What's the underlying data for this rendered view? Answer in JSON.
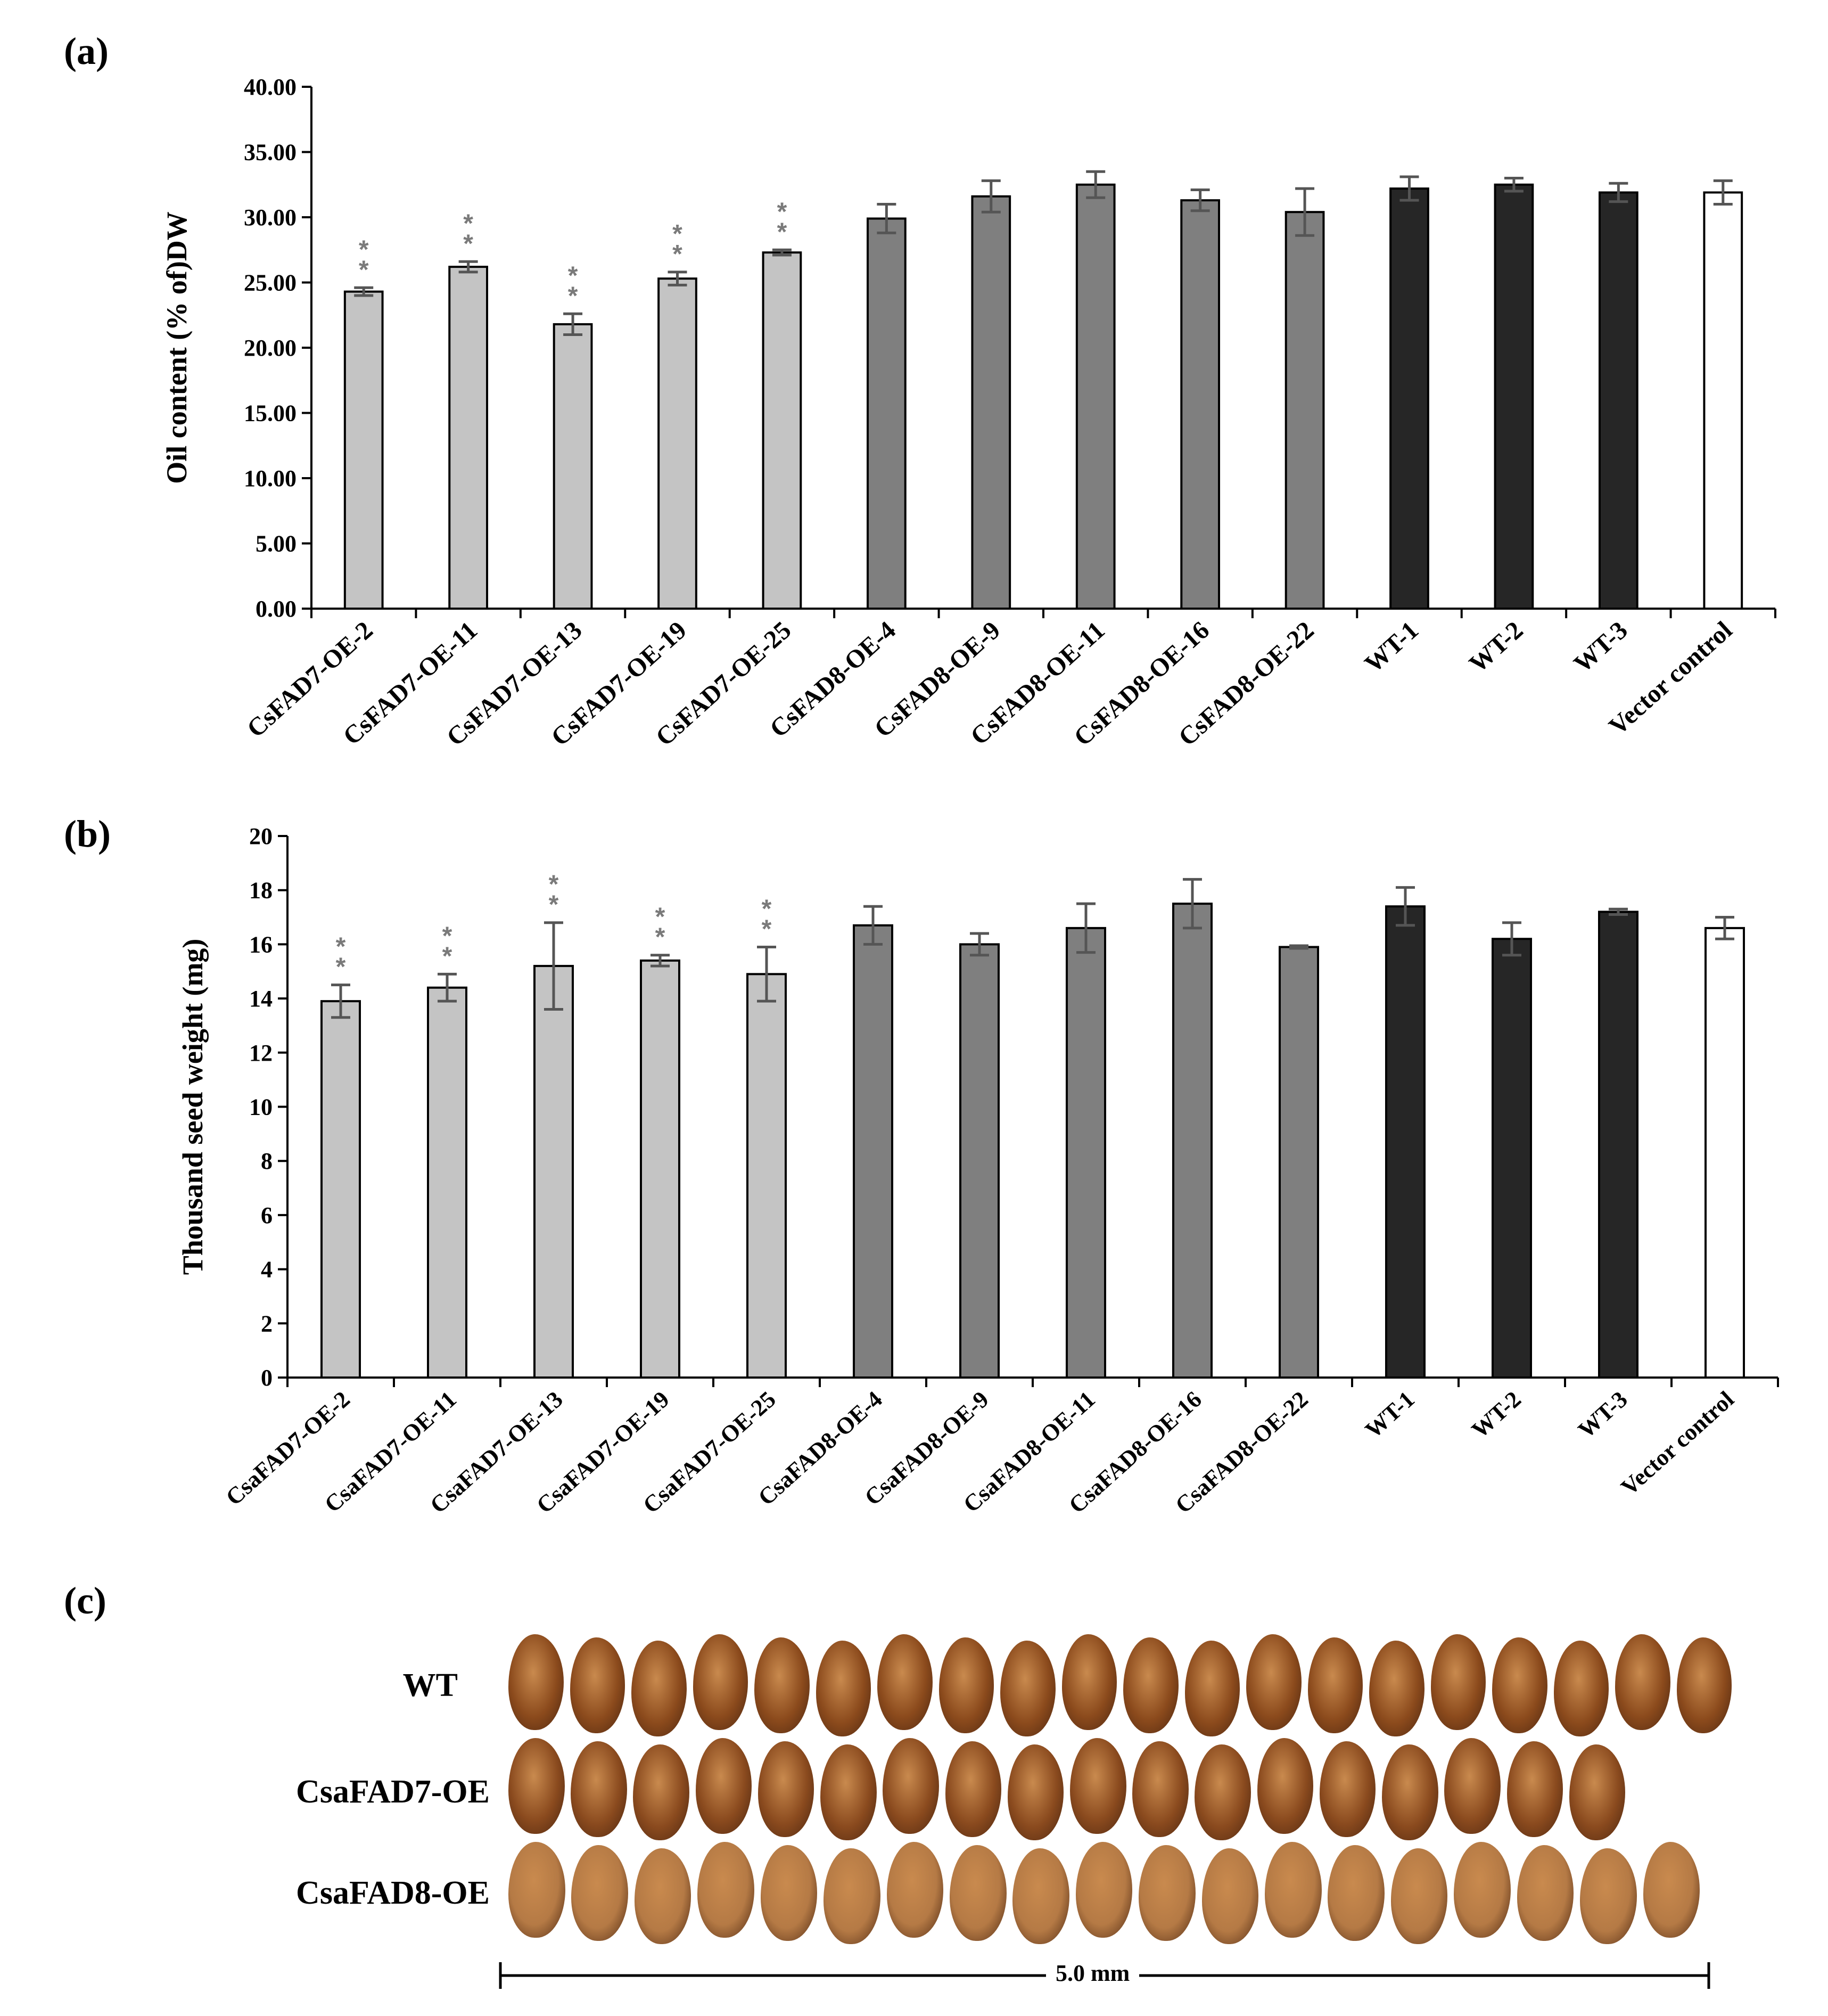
{
  "panel_labels": {
    "a": "(a)",
    "b": "(b)",
    "c": "(c)"
  },
  "colors": {
    "CsaFAD7": "#c4c4c4",
    "CsaFAD8": "#7f7f7f",
    "WT": "#262626",
    "Vector": "#ffffff",
    "error_bar": "#555555",
    "significance": "#7a7a7a",
    "seed_wt": "#8b4a1c",
    "seed_fad7": "#8a4a1e",
    "seed_fad8": "#b57a45"
  },
  "chart_data": [
    {
      "type": "bar",
      "panel": "(a)",
      "ylabel": "Oil content (% of)DW",
      "xlabel": "",
      "ylim": [
        0,
        40
      ],
      "ytick_labels": [
        "0.00",
        "5.00",
        "10.00",
        "15.00",
        "20.00",
        "25.00",
        "30.00",
        "35.00",
        "40.00"
      ],
      "categories": [
        "CsFAD7-OE-2",
        "CsFAD7-OE-11",
        "CsFAD7-OE-13",
        "CsFAD7-OE-19",
        "CsFAD7-OE-25",
        "CsFAD8-OE-4",
        "CsFAD8-OE-9",
        "CsFAD8-OE-11",
        "CsFAD8-OE-16",
        "CsFAD8-OE-22",
        "WT-1",
        "WT-2",
        "WT-3",
        "Vector control"
      ],
      "groups": [
        "CsaFAD7",
        "CsaFAD7",
        "CsaFAD7",
        "CsaFAD7",
        "CsaFAD7",
        "CsaFAD8",
        "CsaFAD8",
        "CsaFAD8",
        "CsaFAD8",
        "CsaFAD8",
        "WT",
        "WT",
        "WT",
        "Vector"
      ],
      "values": [
        24.3,
        26.2,
        21.8,
        25.3,
        27.3,
        29.9,
        31.6,
        32.5,
        31.3,
        30.4,
        32.2,
        32.5,
        31.9,
        31.9
      ],
      "errors": [
        0.3,
        0.4,
        0.8,
        0.5,
        0.2,
        1.1,
        1.2,
        1.0,
        0.8,
        1.8,
        0.9,
        0.5,
        0.7,
        0.9
      ],
      "significance": [
        "**",
        "**",
        "**",
        "**",
        "**",
        "",
        "",
        "",
        "",
        "",
        "",
        "",
        "",
        ""
      ],
      "grid": false,
      "legend": "none"
    },
    {
      "type": "bar",
      "panel": "(b)",
      "ylabel": "Thousand seed weight (mg)",
      "xlabel": "",
      "ylim": [
        0,
        20
      ],
      "ytick_labels": [
        "0",
        "2",
        "4",
        "6",
        "8",
        "10",
        "12",
        "14",
        "16",
        "18",
        "20"
      ],
      "categories": [
        "CsaFAD7-OE-2",
        "CsaFAD7-OE-11",
        "CsaFAD7-OE-13",
        "CsaFAD7-OE-19",
        "CsaFAD7-OE-25",
        "CsaFAD8-OE-4",
        "CsaFAD8-OE-9",
        "CsaFAD8-OE-11",
        "CsaFAD8-OE-16",
        "CsaFAD8-OE-22",
        "WT-1",
        "WT-2",
        "WT-3",
        "Vector control"
      ],
      "groups": [
        "CsaFAD7",
        "CsaFAD7",
        "CsaFAD7",
        "CsaFAD7",
        "CsaFAD7",
        "CsaFAD8",
        "CsaFAD8",
        "CsaFAD8",
        "CsaFAD8",
        "CsaFAD8",
        "WT",
        "WT",
        "WT",
        "Vector"
      ],
      "values": [
        13.9,
        14.4,
        15.2,
        15.4,
        14.9,
        16.7,
        16.0,
        16.6,
        17.5,
        15.9,
        17.4,
        16.2,
        17.2,
        16.6
      ],
      "errors": [
        0.6,
        0.5,
        1.6,
        0.2,
        1.0,
        0.7,
        0.4,
        0.9,
        0.9,
        0.05,
        0.7,
        0.6,
        0.1,
        0.4
      ],
      "significance": [
        "**",
        "**",
        "**",
        "**",
        "**",
        "",
        "",
        "",
        "",
        "",
        "",
        "",
        "",
        ""
      ],
      "grid": false,
      "legend": "none"
    }
  ],
  "seed_panel": {
    "rows": [
      {
        "label": "WT",
        "count": 20,
        "color_key": "seed_wt"
      },
      {
        "label": "CsaFAD7-OE",
        "count": 18,
        "color_key": "seed_fad7"
      },
      {
        "label": "CsaFAD8-OE",
        "count": 19,
        "color_key": "seed_fad8"
      }
    ],
    "scale_bar_label": "5.0 mm"
  }
}
